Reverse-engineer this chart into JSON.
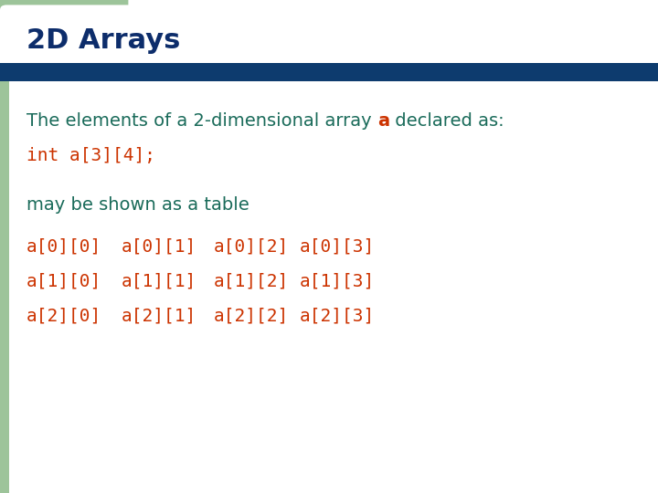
{
  "title": "2D Arrays",
  "title_color": "#0d2d6b",
  "title_bg": "#ffffff",
  "header_bar_color": "#0d3b6e",
  "accent_bg_color": "#9dc49a",
  "body_bg_color": "#ffffff",
  "teal_color": "#1a6b5a",
  "red_color": "#cc3300",
  "line1_normal": "The elements of a 2-dimensional array ",
  "line1_highlight": "a",
  "line1_end": " declared as:",
  "line2": "int a[3][4];",
  "line3": "may be shown as a table",
  "table": [
    [
      "a[0][0]",
      "a[0][1]",
      "a[0][2]",
      "a[0][3]"
    ],
    [
      "a[1][0]",
      "a[1][1]",
      "a[1][2]",
      "a[1][3]"
    ],
    [
      "a[2][0]",
      "a[2][1]",
      "a[2][2]",
      "a[2][3]"
    ]
  ],
  "figsize": [
    7.2,
    5.4
  ],
  "dpi": 100
}
